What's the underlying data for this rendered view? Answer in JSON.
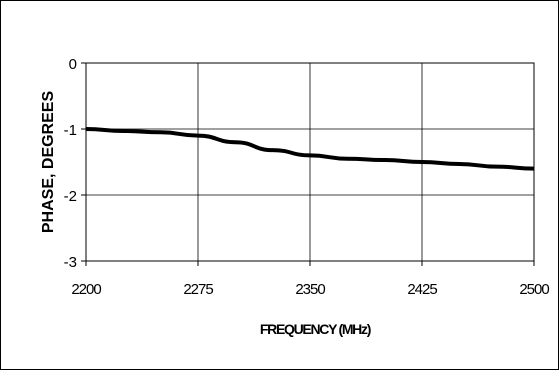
{
  "chart_data": {
    "type": "line",
    "title": "",
    "xlabel": "FREQUENCY (MHz)",
    "ylabel": "PHASE, DEGREES",
    "xlim": [
      2200,
      2500
    ],
    "ylim": [
      -3,
      0
    ],
    "x_ticks": [
      2200,
      2275,
      2350,
      2425,
      2500
    ],
    "x_tick_labels": [
      "2200",
      "2275",
      "2350",
      "2425",
      "2500"
    ],
    "y_ticks": [
      0,
      -1,
      -2,
      -3
    ],
    "y_tick_labels": [
      "0",
      "-1",
      "-2",
      "-3"
    ],
    "grid": true,
    "legend": "none",
    "series": [
      {
        "color": "#000000",
        "x": [
          2200,
          2225,
          2250,
          2275,
          2300,
          2325,
          2350,
          2375,
          2400,
          2425,
          2450,
          2475,
          2500
        ],
        "y": [
          -1.0,
          -1.03,
          -1.05,
          -1.1,
          -1.2,
          -1.32,
          -1.4,
          -1.45,
          -1.47,
          -1.5,
          -1.53,
          -1.57,
          -1.6
        ]
      }
    ]
  }
}
